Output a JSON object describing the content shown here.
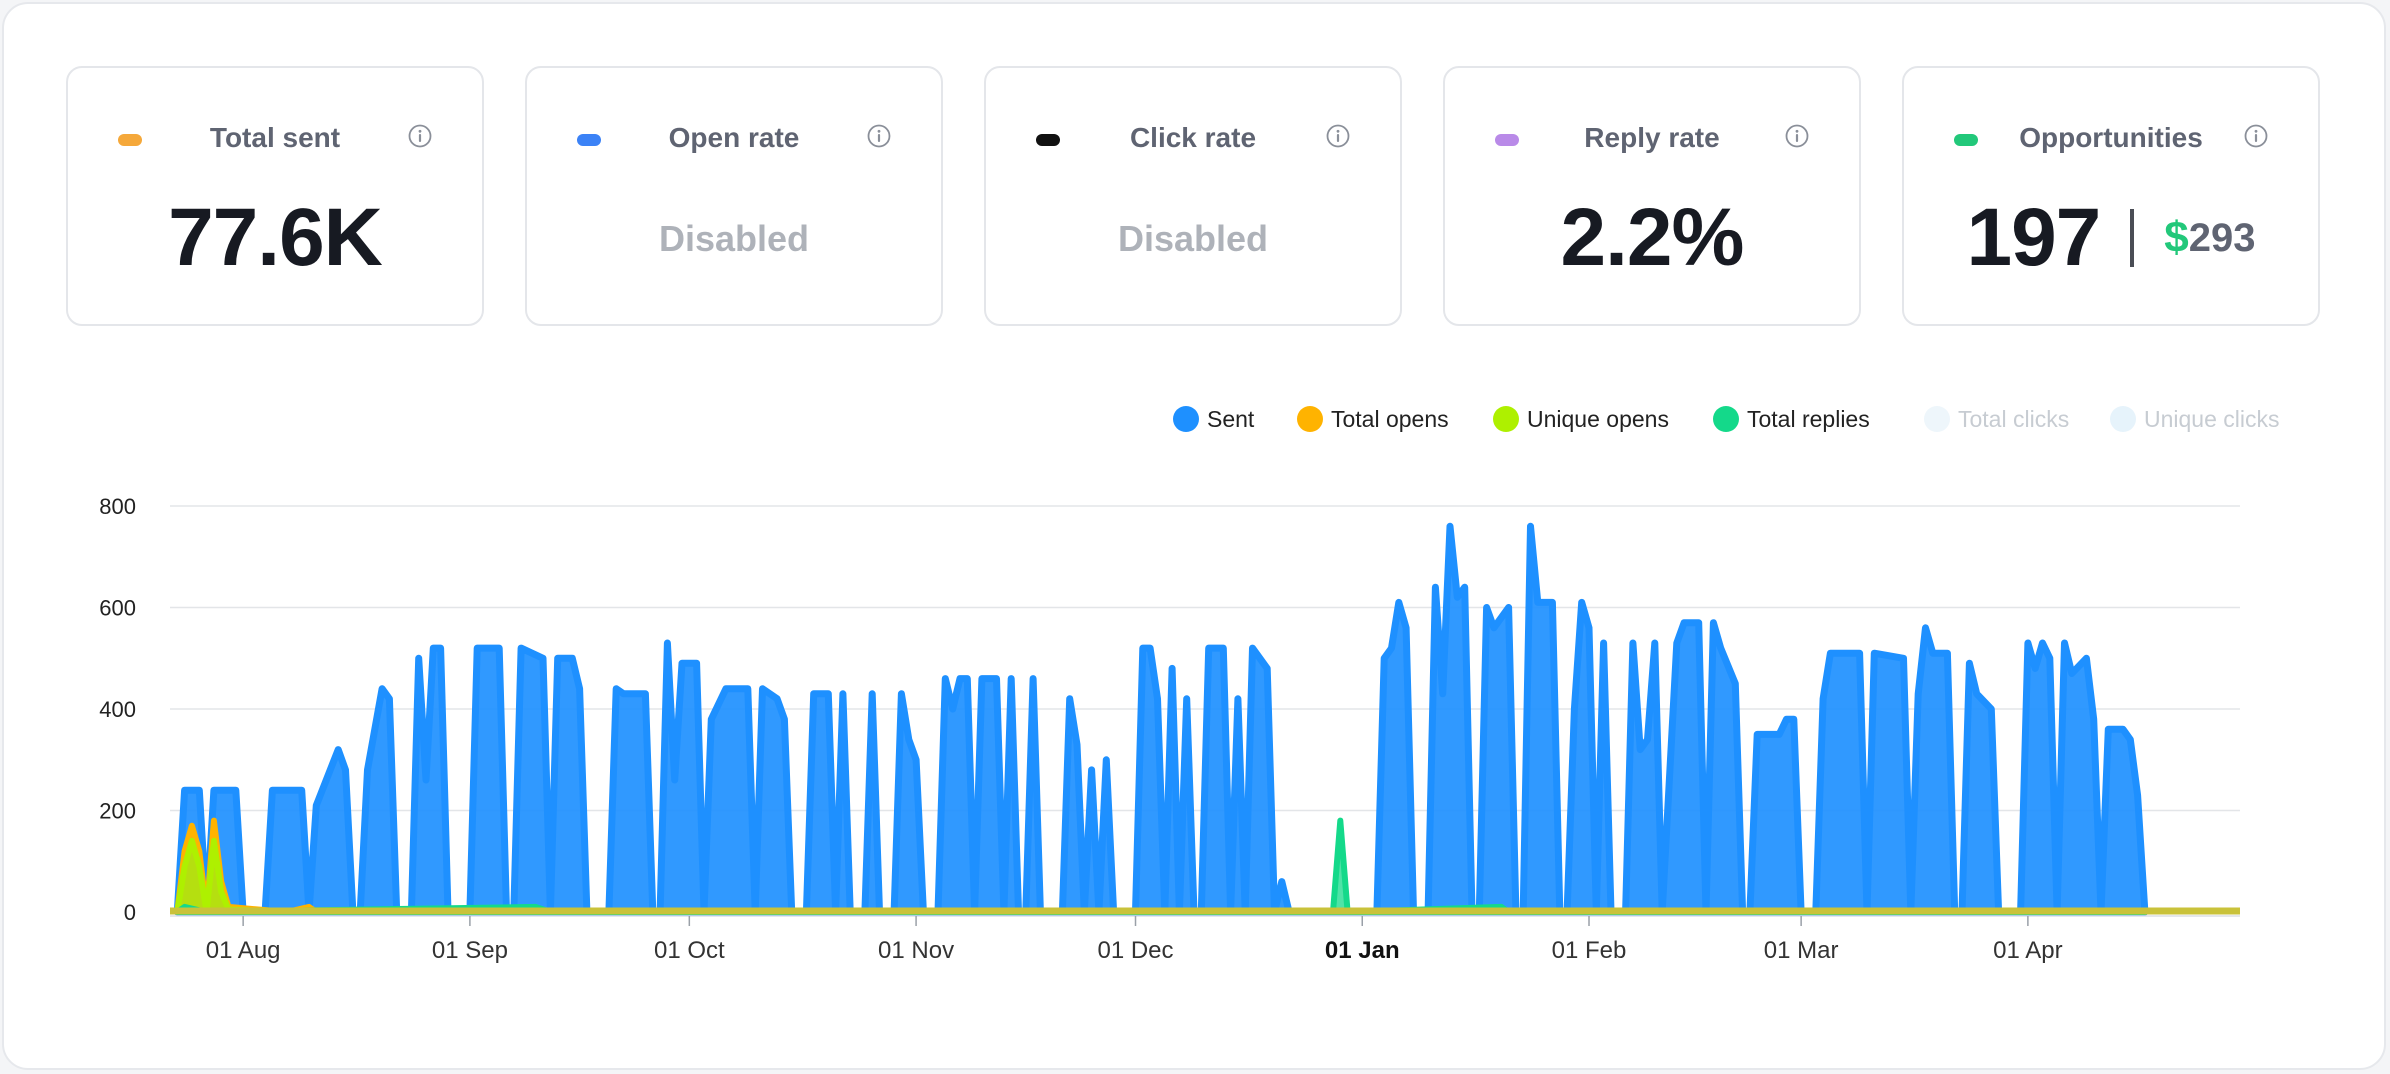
{
  "cards": [
    {
      "title": "Total sent",
      "value": "77.6K",
      "disabled": false,
      "color": "#f5a83a"
    },
    {
      "title": "Open rate",
      "value": "Disabled",
      "disabled": true,
      "color": "#3b82f6"
    },
    {
      "title": "Click rate",
      "value": "Disabled",
      "disabled": true,
      "color": "#111111"
    },
    {
      "title": "Reply rate",
      "value": "2.2%",
      "disabled": false,
      "color": "#b98ae8"
    },
    {
      "title": "Opportunities",
      "value": "197",
      "currency": "$",
      "amount": "293",
      "disabled": false,
      "color": "#22c87a"
    }
  ],
  "icons": {
    "info": "info-circle-icon"
  },
  "legend": [
    {
      "label": "Sent",
      "color": "#1e90ff",
      "active": true
    },
    {
      "label": "Total opens",
      "color": "#ffb300",
      "active": true
    },
    {
      "label": "Unique opens",
      "color": "#aef000",
      "active": true
    },
    {
      "label": "Total replies",
      "color": "#14d98a",
      "active": true
    },
    {
      "label": "Total clicks",
      "color": "#eef6fb",
      "active": false
    },
    {
      "label": "Unique clicks",
      "color": "#e6f3fb",
      "active": false
    }
  ],
  "chart_data": {
    "type": "area",
    "x_range": [
      "2023-07-22",
      "2024-04-30"
    ],
    "ylim": [
      0,
      800
    ],
    "yticks": [
      0,
      200,
      400,
      600,
      800
    ],
    "xticks": [
      {
        "date": "2023-08-01",
        "label": "01 Aug",
        "bold": false
      },
      {
        "date": "2023-09-01",
        "label": "01 Sep",
        "bold": false
      },
      {
        "date": "2023-10-01",
        "label": "01 Oct",
        "bold": false
      },
      {
        "date": "2023-11-01",
        "label": "01 Nov",
        "bold": false
      },
      {
        "date": "2023-12-01",
        "label": "01 Dec",
        "bold": false
      },
      {
        "date": "2024-01-01",
        "label": "01 Jan",
        "bold": true
      },
      {
        "date": "2024-02-01",
        "label": "01 Feb",
        "bold": false
      },
      {
        "date": "2024-03-01",
        "label": "01 Mar",
        "bold": false
      },
      {
        "date": "2024-04-01",
        "label": "01 Apr",
        "bold": false
      }
    ],
    "grid": true,
    "legend_position": "top-right",
    "series": [
      {
        "name": "Sent",
        "color": "#1e90ff",
        "points": [
          [
            "2023-07-23",
            0
          ],
          [
            "2023-07-24",
            240
          ],
          [
            "2023-07-26",
            240
          ],
          [
            "2023-07-27",
            0
          ],
          [
            "2023-07-28",
            240
          ],
          [
            "2023-07-31",
            240
          ],
          [
            "2023-08-01",
            0
          ],
          [
            "2023-08-04",
            0
          ],
          [
            "2023-08-05",
            240
          ],
          [
            "2023-08-09",
            240
          ],
          [
            "2023-08-10",
            0
          ],
          [
            "2023-08-11",
            210
          ],
          [
            "2023-08-14",
            320
          ],
          [
            "2023-08-15",
            280
          ],
          [
            "2023-08-16",
            0
          ],
          [
            "2023-08-17",
            0
          ],
          [
            "2023-08-18",
            280
          ],
          [
            "2023-08-20",
            440
          ],
          [
            "2023-08-21",
            420
          ],
          [
            "2023-08-22",
            0
          ],
          [
            "2023-08-24",
            0
          ],
          [
            "2023-08-25",
            500
          ],
          [
            "2023-08-26",
            260
          ],
          [
            "2023-08-27",
            520
          ],
          [
            "2023-08-28",
            520
          ],
          [
            "2023-08-29",
            0
          ],
          [
            "2023-09-01",
            0
          ],
          [
            "2023-09-02",
            520
          ],
          [
            "2023-09-05",
            520
          ],
          [
            "2023-09-06",
            0
          ],
          [
            "2023-09-07",
            0
          ],
          [
            "2023-09-08",
            520
          ],
          [
            "2023-09-11",
            500
          ],
          [
            "2023-09-12",
            0
          ],
          [
            "2023-09-13",
            500
          ],
          [
            "2023-09-15",
            500
          ],
          [
            "2023-09-16",
            440
          ],
          [
            "2023-09-17",
            0
          ],
          [
            "2023-09-20",
            0
          ],
          [
            "2023-09-21",
            440
          ],
          [
            "2023-09-22",
            430
          ],
          [
            "2023-09-25",
            430
          ],
          [
            "2023-09-26",
            0
          ],
          [
            "2023-09-27",
            0
          ],
          [
            "2023-09-28",
            530
          ],
          [
            "2023-09-29",
            260
          ],
          [
            "2023-09-30",
            490
          ],
          [
            "2023-10-02",
            490
          ],
          [
            "2023-10-03",
            0
          ],
          [
            "2023-10-04",
            380
          ],
          [
            "2023-10-06",
            440
          ],
          [
            "2023-10-09",
            440
          ],
          [
            "2023-10-10",
            0
          ],
          [
            "2023-10-11",
            440
          ],
          [
            "2023-10-13",
            420
          ],
          [
            "2023-10-14",
            380
          ],
          [
            "2023-10-15",
            0
          ],
          [
            "2023-10-17",
            0
          ],
          [
            "2023-10-18",
            430
          ],
          [
            "2023-10-20",
            430
          ],
          [
            "2023-10-21",
            0
          ],
          [
            "2023-10-22",
            430
          ],
          [
            "2023-10-23",
            0
          ],
          [
            "2023-10-25",
            0
          ],
          [
            "2023-10-26",
            430
          ],
          [
            "2023-10-27",
            0
          ],
          [
            "2023-10-29",
            0
          ],
          [
            "2023-10-30",
            430
          ],
          [
            "2023-10-31",
            340
          ],
          [
            "2023-11-01",
            300
          ],
          [
            "2023-11-02",
            0
          ],
          [
            "2023-11-04",
            0
          ],
          [
            "2023-11-05",
            460
          ],
          [
            "2023-11-06",
            400
          ],
          [
            "2023-11-07",
            460
          ],
          [
            "2023-11-08",
            460
          ],
          [
            "2023-11-09",
            0
          ],
          [
            "2023-11-10",
            460
          ],
          [
            "2023-11-12",
            460
          ],
          [
            "2023-11-13",
            0
          ],
          [
            "2023-11-14",
            460
          ],
          [
            "2023-11-15",
            0
          ],
          [
            "2023-11-16",
            0
          ],
          [
            "2023-11-17",
            460
          ],
          [
            "2023-11-18",
            0
          ],
          [
            "2023-11-21",
            0
          ],
          [
            "2023-11-22",
            420
          ],
          [
            "2023-11-23",
            330
          ],
          [
            "2023-11-24",
            0
          ],
          [
            "2023-11-25",
            280
          ],
          [
            "2023-11-26",
            0
          ],
          [
            "2023-11-27",
            300
          ],
          [
            "2023-11-28",
            0
          ],
          [
            "2023-12-01",
            0
          ],
          [
            "2023-12-02",
            520
          ],
          [
            "2023-12-03",
            520
          ],
          [
            "2023-12-04",
            420
          ],
          [
            "2023-12-05",
            0
          ],
          [
            "2023-12-06",
            480
          ],
          [
            "2023-12-07",
            0
          ],
          [
            "2023-12-08",
            420
          ],
          [
            "2023-12-09",
            0
          ],
          [
            "2023-12-10",
            0
          ],
          [
            "2023-12-11",
            520
          ],
          [
            "2023-12-13",
            520
          ],
          [
            "2023-12-14",
            0
          ],
          [
            "2023-12-15",
            420
          ],
          [
            "2023-12-16",
            0
          ],
          [
            "2023-12-17",
            520
          ],
          [
            "2023-12-19",
            480
          ],
          [
            "2023-12-20",
            0
          ],
          [
            "2023-12-21",
            60
          ],
          [
            "2023-12-22",
            0
          ],
          [
            "2024-01-03",
            0
          ],
          [
            "2024-01-04",
            500
          ],
          [
            "2024-01-05",
            520
          ],
          [
            "2024-01-06",
            610
          ],
          [
            "2024-01-07",
            560
          ],
          [
            "2024-01-08",
            0
          ],
          [
            "2024-01-10",
            0
          ],
          [
            "2024-01-11",
            640
          ],
          [
            "2024-01-12",
            430
          ],
          [
            "2024-01-13",
            760
          ],
          [
            "2024-01-14",
            620
          ],
          [
            "2024-01-15",
            640
          ],
          [
            "2024-01-16",
            0
          ],
          [
            "2024-01-17",
            0
          ],
          [
            "2024-01-18",
            600
          ],
          [
            "2024-01-19",
            560
          ],
          [
            "2024-01-21",
            600
          ],
          [
            "2024-01-22",
            0
          ],
          [
            "2024-01-23",
            0
          ],
          [
            "2024-01-24",
            760
          ],
          [
            "2024-01-25",
            610
          ],
          [
            "2024-01-27",
            610
          ],
          [
            "2024-01-28",
            0
          ],
          [
            "2024-01-29",
            0
          ],
          [
            "2024-01-30",
            400
          ],
          [
            "2024-01-31",
            610
          ],
          [
            "2024-02-01",
            560
          ],
          [
            "2024-02-02",
            0
          ],
          [
            "2024-02-03",
            530
          ],
          [
            "2024-02-04",
            0
          ],
          [
            "2024-02-06",
            0
          ],
          [
            "2024-02-07",
            530
          ],
          [
            "2024-02-08",
            320
          ],
          [
            "2024-02-09",
            340
          ],
          [
            "2024-02-10",
            530
          ],
          [
            "2024-02-11",
            0
          ],
          [
            "2024-02-13",
            530
          ],
          [
            "2024-02-14",
            570
          ],
          [
            "2024-02-16",
            570
          ],
          [
            "2024-02-17",
            0
          ],
          [
            "2024-02-18",
            570
          ],
          [
            "2024-02-19",
            520
          ],
          [
            "2024-02-21",
            450
          ],
          [
            "2024-02-22",
            0
          ],
          [
            "2024-02-23",
            0
          ],
          [
            "2024-02-24",
            350
          ],
          [
            "2024-02-27",
            350
          ],
          [
            "2024-02-28",
            380
          ],
          [
            "2024-02-29",
            380
          ],
          [
            "2024-03-01",
            0
          ],
          [
            "2024-03-03",
            0
          ],
          [
            "2024-03-04",
            420
          ],
          [
            "2024-03-05",
            510
          ],
          [
            "2024-03-09",
            510
          ],
          [
            "2024-03-10",
            0
          ],
          [
            "2024-03-11",
            510
          ],
          [
            "2024-03-15",
            500
          ],
          [
            "2024-03-16",
            0
          ],
          [
            "2024-03-17",
            430
          ],
          [
            "2024-03-18",
            560
          ],
          [
            "2024-03-19",
            510
          ],
          [
            "2024-03-21",
            510
          ],
          [
            "2024-03-22",
            0
          ],
          [
            "2024-03-23",
            0
          ],
          [
            "2024-03-24",
            490
          ],
          [
            "2024-03-25",
            430
          ],
          [
            "2024-03-27",
            400
          ],
          [
            "2024-03-28",
            0
          ],
          [
            "2024-03-31",
            0
          ],
          [
            "2024-04-01",
            530
          ],
          [
            "2024-04-02",
            480
          ],
          [
            "2024-04-03",
            530
          ],
          [
            "2024-04-04",
            500
          ],
          [
            "2024-04-05",
            0
          ],
          [
            "2024-04-06",
            530
          ],
          [
            "2024-04-07",
            470
          ],
          [
            "2024-04-09",
            500
          ],
          [
            "2024-04-10",
            380
          ],
          [
            "2024-04-11",
            0
          ],
          [
            "2024-04-12",
            360
          ],
          [
            "2024-04-14",
            360
          ],
          [
            "2024-04-15",
            340
          ],
          [
            "2024-04-16",
            230
          ],
          [
            "2024-04-17",
            0
          ]
        ]
      },
      {
        "name": "Total opens",
        "color": "#ffb300",
        "points": [
          [
            "2023-07-23",
            0
          ],
          [
            "2023-07-24",
            120
          ],
          [
            "2023-07-25",
            170
          ],
          [
            "2023-07-26",
            120
          ],
          [
            "2023-07-27",
            0
          ],
          [
            "2023-07-28",
            180
          ],
          [
            "2023-07-29",
            60
          ],
          [
            "2023-07-30",
            10
          ],
          [
            "2023-08-07",
            0
          ],
          [
            "2023-08-10",
            10
          ],
          [
            "2023-08-11",
            0
          ],
          [
            "2024-04-17",
            0
          ]
        ]
      },
      {
        "name": "Unique opens",
        "color": "#aef000",
        "points": [
          [
            "2023-07-23",
            0
          ],
          [
            "2023-07-24",
            90
          ],
          [
            "2023-07-25",
            140
          ],
          [
            "2023-07-26",
            90
          ],
          [
            "2023-07-27",
            0
          ],
          [
            "2023-07-28",
            140
          ],
          [
            "2023-07-29",
            40
          ],
          [
            "2023-07-30",
            5
          ],
          [
            "2023-08-07",
            0
          ],
          [
            "2024-04-17",
            0
          ]
        ]
      },
      {
        "name": "Total replies",
        "color": "#14d98a",
        "points": [
          [
            "2023-07-23",
            0
          ],
          [
            "2023-07-24",
            10
          ],
          [
            "2023-07-27",
            0
          ],
          [
            "2023-09-10",
            10
          ],
          [
            "2023-09-12",
            0
          ],
          [
            "2023-12-28",
            0
          ],
          [
            "2023-12-29",
            180
          ],
          [
            "2023-12-30",
            0
          ],
          [
            "2024-01-20",
            10
          ],
          [
            "2024-01-21",
            0
          ],
          [
            "2024-04-17",
            0
          ]
        ]
      }
    ]
  }
}
